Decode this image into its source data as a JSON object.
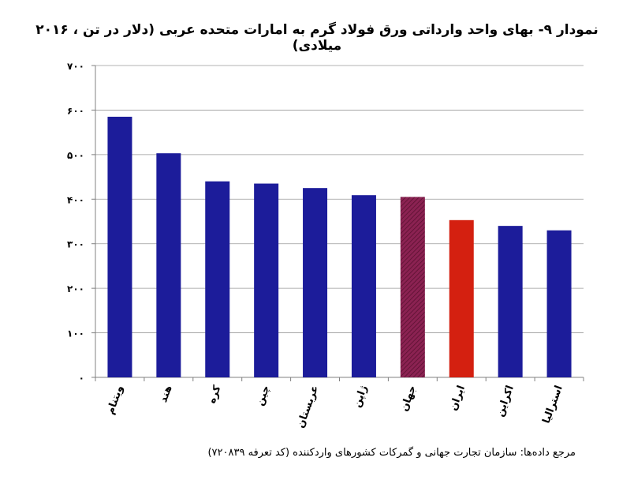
{
  "chart_data": {
    "type": "bar",
    "title": "نمودار ۹- بهای واحد وارداتی ورق فولاد گرم به امارات متحده عربی (دلار در تن ، ۲۰۱۶ میلادی)",
    "xlabel": "",
    "ylabel": "",
    "ylim": [
      0,
      700
    ],
    "yticks": [
      0,
      100,
      200,
      300,
      400,
      500,
      600,
      700
    ],
    "ytick_labels": [
      "۰",
      "۱۰۰",
      "۲۰۰",
      "۳۰۰",
      "۴۰۰",
      "۵۰۰",
      "۶۰۰",
      "۷۰۰"
    ],
    "grid": true,
    "categories": [
      "ویتنام",
      "هند",
      "کره",
      "چین",
      "عربستان",
      "ژاپن",
      "جهان",
      "ایران",
      "اکراین",
      "استرالیا"
    ],
    "values": [
      585,
      503,
      440,
      435,
      425,
      409,
      405,
      353,
      340,
      330
    ],
    "colors": [
      "#1c1c9a",
      "#1c1c9a",
      "#1c1c9a",
      "#1c1c9a",
      "#1c1c9a",
      "#1c1c9a",
      "#8b2252",
      "#d42010",
      "#1c1c9a",
      "#1c1c9a"
    ],
    "patterns": [
      "solid",
      "solid",
      "solid",
      "solid",
      "solid",
      "solid",
      "hatched",
      "solid",
      "solid",
      "solid"
    ]
  },
  "footer": {
    "source": "مرجع داده‌ها: سازمان تجارت جهانی و گمرکات کشورهای واردکننده (کد تعرفه ۷۲۰۸۳۹)"
  }
}
